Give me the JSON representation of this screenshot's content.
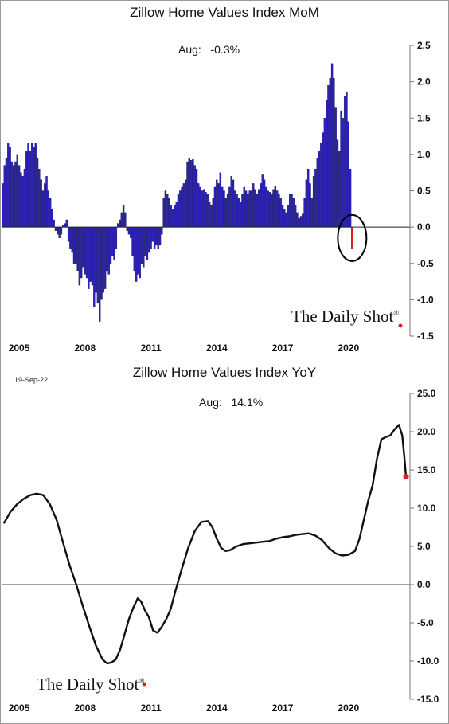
{
  "stamp": "19-Sep-22",
  "brand": {
    "name": "The Daily Shot",
    "reg": "®"
  },
  "chart_data": [
    {
      "type": "bar",
      "title": "Zillow Home Values Index MoM",
      "annotation": {
        "label": "Aug:",
        "value": "-0.3%"
      },
      "x_start": 2004.25,
      "x_step": 0.08333,
      "xlim": [
        2004.2,
        2022.8
      ],
      "ylim": [
        -1.5,
        2.5
      ],
      "x_ticks": [
        2005,
        2008,
        2011,
        2014,
        2017,
        2020
      ],
      "y_ticks": [
        2.5,
        2.0,
        1.5,
        1.0,
        0.5,
        0.0,
        -0.5,
        -1.0,
        -1.5
      ],
      "y_tick_labels": [
        "2.5",
        "2.0",
        "1.5",
        "1.0",
        "0.5",
        "0.0",
        "-0.5",
        "-1.0",
        "-1.5"
      ],
      "bar_color": "#2d22b8",
      "highlight_color": "#e02020",
      "values": [
        0.6,
        0.85,
        0.95,
        1.15,
        1.1,
        0.9,
        0.85,
        0.9,
        1.0,
        0.85,
        0.75,
        0.7,
        0.8,
        1.05,
        1.15,
        1.05,
        1.15,
        1.1,
        1.15,
        0.95,
        0.8,
        0.65,
        0.5,
        0.6,
        0.7,
        0.5,
        0.4,
        0.25,
        0.1,
        -0.05,
        -0.1,
        -0.15,
        -0.1,
        0.02,
        0.05,
        0.1,
        -0.2,
        -0.3,
        -0.35,
        -0.5,
        -0.5,
        -0.6,
        -0.8,
        -0.7,
        -0.55,
        -0.65,
        -0.7,
        -0.85,
        -0.75,
        -0.8,
        -1.1,
        -0.9,
        -1.05,
        -1.3,
        -1.0,
        -0.9,
        -0.85,
        -0.6,
        -0.65,
        -0.5,
        -0.4,
        -0.45,
        -0.3,
        0.05,
        0.1,
        0.2,
        0.3,
        0.2,
        -0.05,
        -0.1,
        -0.15,
        -0.4,
        -0.6,
        -0.75,
        -0.65,
        -0.7,
        -0.5,
        -0.55,
        -0.4,
        -0.45,
        -0.35,
        -0.3,
        -0.2,
        -0.3,
        -0.25,
        -0.3,
        -0.25,
        -0.1,
        0.4,
        0.5,
        0.45,
        0.4,
        0.3,
        0.25,
        0.3,
        0.35,
        0.45,
        0.5,
        0.55,
        0.6,
        0.65,
        0.9,
        0.95,
        0.92,
        0.93,
        0.85,
        0.8,
        0.6,
        0.55,
        0.5,
        0.52,
        0.48,
        0.45,
        0.35,
        0.3,
        0.4,
        0.55,
        0.65,
        0.6,
        0.75,
        0.55,
        0.5,
        0.4,
        0.45,
        0.55,
        0.7,
        0.65,
        0.5,
        0.45,
        0.4,
        0.35,
        0.45,
        0.55,
        0.5,
        0.45,
        0.5,
        0.5,
        0.6,
        0.52,
        0.45,
        0.52,
        0.6,
        0.72,
        0.65,
        0.55,
        0.5,
        0.48,
        0.45,
        0.52,
        0.56,
        0.5,
        0.45,
        0.4,
        0.3,
        0.25,
        0.2,
        0.3,
        0.45,
        0.45,
        0.4,
        0.3,
        0.2,
        0.12,
        0.15,
        0.18,
        0.4,
        0.65,
        0.8,
        0.6,
        0.4,
        0.7,
        0.8,
        0.95,
        1.05,
        1.15,
        1.3,
        1.5,
        1.75,
        1.95,
        2.05,
        2.25,
        2.05,
        1.65,
        1.2,
        1.05,
        1.6,
        1.5,
        1.8,
        1.85,
        1.45,
        0.8,
        -0.3
      ]
    },
    {
      "type": "line",
      "title": "Zillow Home Values Index YoY",
      "annotation": {
        "label": "Aug:",
        "value": "14.1%"
      },
      "xlim": [
        2004.2,
        2022.8
      ],
      "ylim": [
        -15,
        25
      ],
      "x_ticks": [
        2005,
        2008,
        2011,
        2014,
        2017,
        2020
      ],
      "y_ticks": [
        25,
        20,
        15,
        10,
        5,
        0,
        -5,
        -10,
        -15
      ],
      "y_tick_labels": [
        "25.0",
        "20.0",
        "15.0",
        "10.0",
        "5.0",
        "0.0",
        "-5.0",
        "-10.0",
        "-15.0"
      ],
      "line_color": "#111111",
      "endpoint_color": "#e02020",
      "x": [
        2004.3,
        2004.6,
        2004.9,
        2005.2,
        2005.5,
        2005.8,
        2006.1,
        2006.4,
        2006.7,
        2007.0,
        2007.3,
        2007.6,
        2007.9,
        2008.2,
        2008.5,
        2008.8,
        2009.0,
        2009.2,
        2009.4,
        2009.6,
        2009.8,
        2010.0,
        2010.2,
        2010.4,
        2010.55,
        2010.75,
        2010.9,
        2011.1,
        2011.3,
        2011.5,
        2011.7,
        2011.9,
        2012.1,
        2012.4,
        2012.7,
        2013.0,
        2013.3,
        2013.6,
        2013.8,
        2014.0,
        2014.2,
        2014.4,
        2014.6,
        2014.9,
        2015.2,
        2015.5,
        2015.8,
        2016.1,
        2016.4,
        2016.7,
        2017.0,
        2017.3,
        2017.6,
        2017.9,
        2018.2,
        2018.5,
        2018.8,
        2019.1,
        2019.4,
        2019.7,
        2020.0,
        2020.3,
        2020.5,
        2020.7,
        2020.9,
        2021.1,
        2021.3,
        2021.5,
        2021.7,
        2021.9,
        2022.1,
        2022.3,
        2022.45,
        2022.55,
        2022.62
      ],
      "values": [
        8.0,
        9.5,
        10.5,
        11.2,
        11.7,
        11.9,
        11.7,
        10.5,
        8.5,
        5.5,
        2.5,
        0.0,
        -2.8,
        -5.5,
        -8.0,
        -9.8,
        -10.3,
        -10.2,
        -9.8,
        -8.5,
        -6.5,
        -4.5,
        -3.0,
        -1.8,
        -2.2,
        -3.5,
        -4.2,
        -6.0,
        -6.3,
        -5.5,
        -4.5,
        -3.2,
        -1.0,
        2.0,
        4.8,
        7.0,
        8.2,
        8.3,
        7.5,
        6.0,
        4.8,
        4.4,
        4.5,
        5.0,
        5.3,
        5.4,
        5.5,
        5.6,
        5.7,
        6.0,
        6.2,
        6.3,
        6.5,
        6.6,
        6.7,
        6.4,
        5.8,
        4.8,
        4.1,
        3.8,
        3.9,
        4.4,
        6.0,
        8.5,
        11.0,
        13.0,
        16.5,
        19.0,
        19.3,
        19.5,
        20.3,
        20.9,
        19.5,
        16.5,
        14.1
      ]
    }
  ]
}
